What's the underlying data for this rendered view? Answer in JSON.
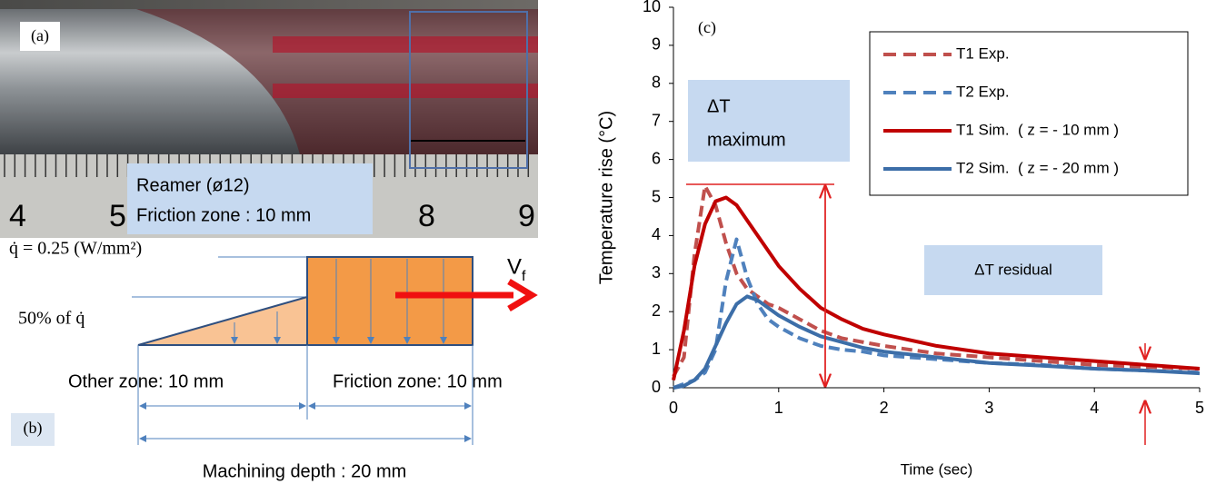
{
  "photo": {
    "tag": "(a)",
    "label_lines": [
      "Reamer (ø12)",
      "Friction zone : 10 mm"
    ],
    "ruler_labels": [
      "4",
      "5",
      "8",
      "9"
    ]
  },
  "diagram": {
    "tag": "(b)",
    "flux_label": "q̇ = 0.25 (W/mm²)",
    "half_flux_label": "50% of q̇",
    "velocity_label": "V",
    "velocity_sub": "f",
    "other_zone": "Other zone: 10 mm",
    "friction_zone": "Friction zone: 10 mm",
    "machining_depth": "Machining depth : 20 mm"
  },
  "chart_data": {
    "type": "line",
    "tag": "(c)",
    "x_label": "Time (sec)",
    "y_label": "Temperature rise (°C)",
    "annotations": [
      [
        "ΔT",
        "maximum"
      ],
      [
        "ΔT residual"
      ]
    ],
    "x": [
      0,
      0.1,
      0.2,
      0.3,
      0.4,
      0.5,
      0.6,
      0.7,
      0.8,
      0.9,
      1,
      1.2,
      1.4,
      1.6,
      1.8,
      2,
      2.5,
      3,
      3.5,
      4,
      4.5,
      5
    ],
    "series": [
      {
        "name": "T1 Exp.",
        "color": "#c0504d",
        "dashed": true,
        "values": [
          0.3,
          0.8,
          3.5,
          5.3,
          4.8,
          3.8,
          3.0,
          2.6,
          2.4,
          2.2,
          2.1,
          1.8,
          1.5,
          1.3,
          1.2,
          1.1,
          0.9,
          0.8,
          0.7,
          0.6,
          0.55,
          0.5
        ]
      },
      {
        "name": "T2 Exp.",
        "color": "#4f81bd",
        "dashed": true,
        "values": [
          0,
          0.1,
          0.2,
          0.4,
          1.0,
          2.8,
          3.9,
          2.9,
          2.2,
          1.8,
          1.6,
          1.3,
          1.1,
          1.0,
          0.95,
          0.85,
          0.75,
          0.65,
          0.6,
          0.5,
          0.45,
          0.4
        ]
      },
      {
        "name": "T1 Sim.  ( z = - 10 mm )",
        "color": "#c00000",
        "dashed": false,
        "values": [
          0.2,
          1.5,
          3.2,
          4.3,
          4.9,
          5.0,
          4.8,
          4.4,
          4.0,
          3.6,
          3.2,
          2.6,
          2.1,
          1.8,
          1.55,
          1.4,
          1.1,
          0.9,
          0.8,
          0.7,
          0.6,
          0.5
        ]
      },
      {
        "name": "T2 Sim.  ( z = - 20 mm )",
        "color": "#3c6ea8",
        "dashed": false,
        "values": [
          0,
          0.05,
          0.2,
          0.5,
          1.1,
          1.7,
          2.2,
          2.4,
          2.3,
          2.1,
          1.9,
          1.6,
          1.35,
          1.2,
          1.05,
          0.95,
          0.8,
          0.65,
          0.58,
          0.5,
          0.45,
          0.38
        ]
      }
    ],
    "xlim": [
      0,
      5
    ],
    "xticks": [
      0,
      1,
      2,
      3,
      4,
      5
    ],
    "ylim": [
      0,
      10
    ],
    "yticks": [
      0,
      1,
      2,
      3,
      4,
      5,
      6,
      7,
      8,
      9,
      10
    ],
    "legend": "top-right",
    "grid": false
  }
}
